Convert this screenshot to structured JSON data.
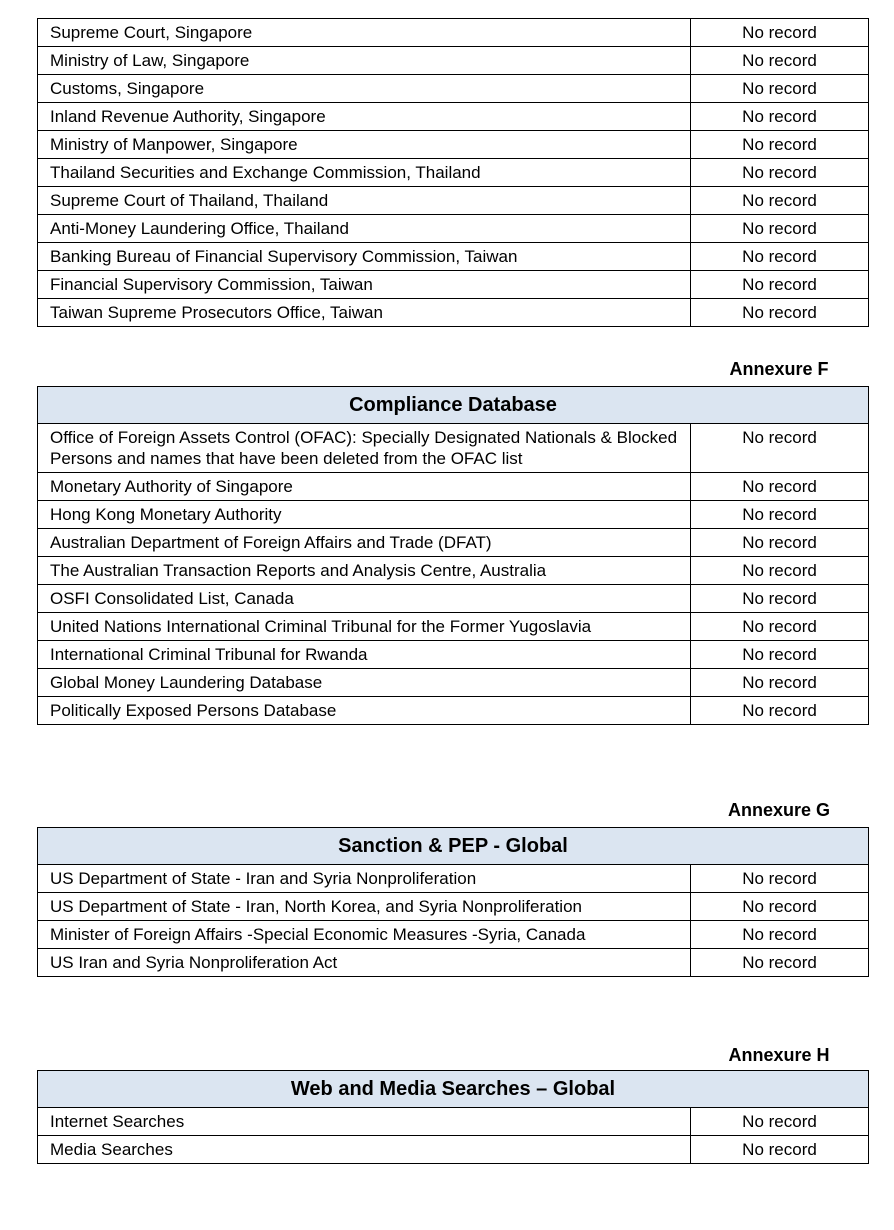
{
  "document": {
    "colors": {
      "header_band": "#dbe5f1",
      "border": "#000000",
      "text": "#000000",
      "page_background": "#ffffff"
    },
    "tables": {
      "regulatory": {
        "rows": [
          {
            "source": "Supreme Court, Singapore",
            "result": "No record"
          },
          {
            "source": "Ministry of Law, Singapore",
            "result": "No record"
          },
          {
            "source": "Customs, Singapore",
            "result": "No record"
          },
          {
            "source": "Inland Revenue Authority, Singapore",
            "result": "No record"
          },
          {
            "source": "Ministry of Manpower, Singapore",
            "result": "No record"
          },
          {
            "source": "Thailand Securities and Exchange Commission, Thailand",
            "result": "No record"
          },
          {
            "source": "Supreme Court of Thailand, Thailand",
            "result": "No record"
          },
          {
            "source": "Anti-Money Laundering Office, Thailand",
            "result": "No record"
          },
          {
            "source": "Banking Bureau of Financial Supervisory Commission, Taiwan",
            "result": "No record"
          },
          {
            "source": "Financial Supervisory Commission, Taiwan",
            "result": "No record"
          },
          {
            "source": "Taiwan Supreme Prosecutors Office, Taiwan",
            "result": "No record"
          }
        ]
      },
      "compliance": {
        "annexure": "Annexure F",
        "title": "Compliance Database",
        "rows": [
          {
            "source": "Office of Foreign Assets Control (OFAC): Specially Designated Nationals & Blocked Persons and names that have been deleted from the OFAC list",
            "result": "No record"
          },
          {
            "source": "Monetary Authority of Singapore",
            "result": "No record"
          },
          {
            "source": "Hong Kong Monetary Authority",
            "result": "No record"
          },
          {
            "source": "Australian Department of Foreign Affairs and Trade (DFAT)",
            "result": "No record"
          },
          {
            "source": "The Australian Transaction Reports and Analysis Centre, Australia",
            "result": "No record"
          },
          {
            "source": "OSFI Consolidated List, Canada",
            "result": "No record"
          },
          {
            "source": "United Nations International Criminal Tribunal for the Former Yugoslavia",
            "result": "No record"
          },
          {
            "source": "International Criminal Tribunal for Rwanda",
            "result": "No record"
          },
          {
            "source": "Global Money Laundering Database",
            "result": "No record"
          },
          {
            "source": "Politically Exposed Persons Database",
            "result": "No record"
          }
        ]
      },
      "sanction": {
        "annexure": "Annexure G",
        "title": "Sanction & PEP - Global",
        "rows": [
          {
            "source": "US Department of State - Iran and Syria Nonproliferation",
            "result": "No record"
          },
          {
            "source": "US Department of State - Iran, North Korea, and Syria Nonproliferation",
            "result": "No record"
          },
          {
            "source": "Minister of Foreign Affairs -Special Economic Measures -Syria, Canada",
            "result": "No record"
          },
          {
            "source": "US Iran and Syria Nonproliferation Act",
            "result": "No record"
          }
        ]
      },
      "web_media": {
        "annexure": "Annexure H",
        "title": "Web and Media Searches – Global",
        "rows": [
          {
            "source": "Internet Searches",
            "result": "No record"
          },
          {
            "source": "Media Searches",
            "result": "No record"
          }
        ]
      }
    }
  }
}
